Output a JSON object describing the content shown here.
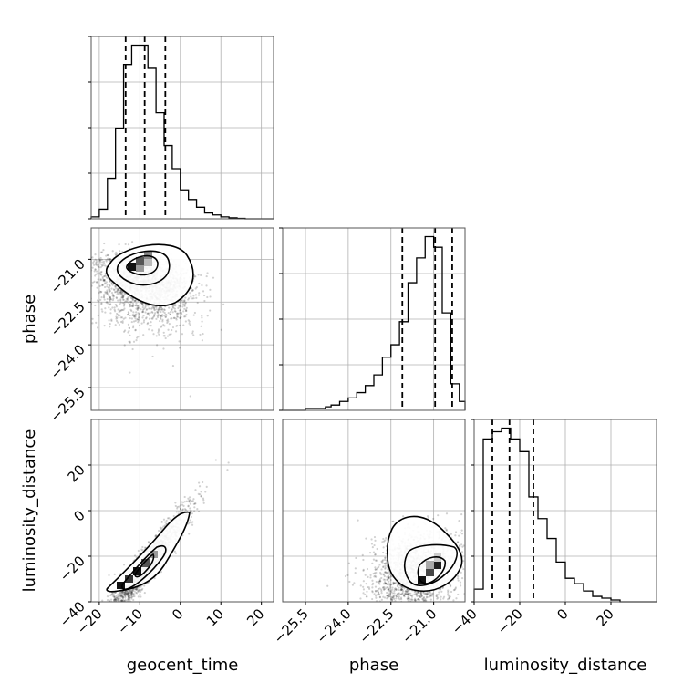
{
  "chart_data": {
    "type": "corner",
    "parameters": [
      "geocent_time",
      "phase",
      "luminosity_distance"
    ],
    "grid": true,
    "ticks": {
      "geocent_time": [
        -20,
        -10,
        0,
        10,
        20
      ],
      "phase": [
        -25.5,
        -24.0,
        -22.5,
        -21.0
      ],
      "luminosity_distance": [
        -40,
        -20,
        0,
        20
      ]
    },
    "tick_labels": {
      "geocent_time": [
        "−20",
        "−10",
        "0",
        "10",
        "20"
      ],
      "phase": [
        "−25.5",
        "−24.0",
        "−22.5",
        "−21.0"
      ],
      "phase_horizontal": [
        "−25.5",
        "−24.0",
        "−22.5",
        "−21.0"
      ],
      "luminosity_distance": [
        "−40",
        "−20",
        "0",
        "20"
      ],
      "luminosity_distance_vertical": [
        "−40",
        "−20",
        "0",
        "20"
      ]
    },
    "ranges": {
      "geocent_time": [
        -22,
        23
      ],
      "phase": [
        -26.3,
        -19.9
      ],
      "luminosity_distance": [
        -40,
        40
      ]
    },
    "histograms": {
      "geocent_time": {
        "edges": [
          -22,
          -20,
          -18,
          -16,
          -14,
          -12,
          -10,
          -8,
          -6,
          -4,
          -2,
          0,
          2,
          4,
          6,
          8,
          10,
          12,
          14,
          16,
          18,
          20,
          23
        ],
        "counts": [
          0.01,
          0.05,
          0.21,
          0.47,
          0.8,
          0.9,
          0.9,
          0.78,
          0.55,
          0.38,
          0.26,
          0.15,
          0.1,
          0.06,
          0.03,
          0.02,
          0.01,
          0.005,
          0.002,
          0,
          0,
          0
        ],
        "quantiles": [
          -13.5,
          -8.8,
          -3.7
        ]
      },
      "phase": {
        "edges": [
          -26.3,
          -25.5,
          -24.8,
          -24.6,
          -24.3,
          -24.0,
          -23.7,
          -23.4,
          -23.1,
          -22.8,
          -22.5,
          -22.2,
          -21.9,
          -21.6,
          -21.3,
          -21.0,
          -20.7,
          -20.4,
          -20.1,
          -19.9
        ],
        "counts": [
          0,
          0.01,
          0.02,
          0.03,
          0.05,
          0.07,
          0.1,
          0.14,
          0.2,
          0.3,
          0.37,
          0.5,
          0.72,
          0.86,
          0.98,
          0.92,
          0.55,
          0.15,
          0.05
        ],
        "quantiles": [
          -22.1,
          -20.95,
          -20.35
        ]
      },
      "luminosity_distance": {
        "edges": [
          -40,
          -36,
          -32,
          -28,
          -24,
          -20,
          -16,
          -12,
          -8,
          -4,
          0,
          4,
          8,
          12,
          16,
          20,
          24,
          28,
          32,
          36,
          40
        ],
        "counts": [
          0.07,
          0.9,
          0.94,
          0.96,
          0.9,
          0.83,
          0.58,
          0.46,
          0.35,
          0.22,
          0.13,
          0.1,
          0.06,
          0.03,
          0.02,
          0.01,
          0,
          0,
          0,
          0
        ],
        "quantiles": [
          -32,
          -24.5,
          -14
        ]
      }
    }
  }
}
